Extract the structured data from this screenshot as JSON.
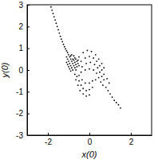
{
  "chart_data": {
    "type": "scatter",
    "x_label": "x(0)",
    "y_label": "y(0)",
    "color": "#000000",
    "marker": "dot",
    "xlim": [
      -3,
      3
    ],
    "ylim": [
      -3,
      3
    ],
    "xticks": [
      -2,
      0,
      2
    ],
    "yticks": [
      -3,
      -2,
      -1,
      0,
      1,
      2,
      3
    ],
    "x": [
      -1.85,
      -1.8,
      -1.75,
      -1.7,
      -1.65,
      -1.6,
      -1.55,
      -1.5,
      -1.45,
      -1.4,
      -1.35,
      -1.3,
      -1.25,
      -1.2,
      -1.15,
      -1.1,
      -1.05,
      -1.0,
      -0.95,
      -0.9,
      -0.85,
      -0.8,
      -0.75,
      -0.7,
      -0.65,
      -1.05,
      -1.0,
      -0.95,
      -0.9,
      -0.85,
      -0.8,
      -1.1,
      -1.05,
      -1.0,
      -0.95,
      -0.9,
      -0.6,
      -0.55,
      -0.5,
      -0.7,
      -0.65,
      -0.75,
      -0.85,
      -0.6,
      -0.7,
      -0.8,
      -0.9,
      -1.1,
      -0.55,
      -0.65,
      -0.75,
      -0.5,
      -0.3,
      -0.1,
      0.1,
      0.3,
      0.45,
      0.6,
      0.7,
      -0.4,
      -0.2,
      0,
      0.2,
      0.35,
      0.5,
      0.6,
      0.7,
      -0.35,
      -0.15,
      0.05,
      0.25,
      0.4,
      0.5,
      0.6,
      0.7,
      -0.4,
      -0.2,
      0,
      0.2,
      0.35,
      0.45,
      0.55,
      0.65,
      -0.6,
      -0.5,
      -0.4,
      -0.3,
      -0.15,
      0,
      0.15,
      -0.7,
      -0.65,
      -0.55,
      -0.45,
      -0.3,
      -0.15,
      0,
      -0.5,
      -0.35,
      -0.2,
      0,
      0.15,
      0.3,
      0.8,
      0.9,
      1.0,
      1.1,
      1.2,
      1.3,
      1.4,
      1.5,
      0.95,
      0.85
    ],
    "values": [
      2.9,
      2.75,
      2.6,
      2.45,
      2.3,
      2.15,
      2.0,
      1.85,
      1.7,
      1.55,
      1.42,
      1.3,
      1.18,
      1.07,
      0.97,
      0.88,
      0.8,
      0.7,
      0.6,
      0.5,
      0.4,
      0.3,
      0.2,
      0.1,
      0.0,
      0.5,
      0.4,
      0.3,
      0.2,
      0.1,
      0.0,
      0.35,
      0.25,
      0.15,
      0.05,
      -0.05,
      0.4,
      0.3,
      0.2,
      0.55,
      0.5,
      0.65,
      0.7,
      0.15,
      0.35,
      0.5,
      0.65,
      0.6,
      0.45,
      0.25,
      0.45,
      0.6,
      0.8,
      0.9,
      0.85,
      0.7,
      0.5,
      0.3,
      0.1,
      0.4,
      0.55,
      0.62,
      0.55,
      0.4,
      0.2,
      0.0,
      -0.2,
      0.15,
      0.3,
      0.35,
      0.25,
      0.1,
      -0.1,
      -0.3,
      -0.45,
      -0.1,
      0.0,
      0.05,
      0.0,
      -0.15,
      -0.35,
      -0.55,
      -0.7,
      -0.3,
      -0.5,
      -0.7,
      -0.85,
      -0.95,
      -0.9,
      -0.8,
      -0.2,
      -0.45,
      -0.7,
      -0.95,
      -1.1,
      -1.2,
      -1.15,
      -0.25,
      -0.45,
      -0.6,
      -0.6,
      -0.5,
      -0.45,
      -0.8,
      -0.95,
      -1.1,
      -1.25,
      -1.4,
      -1.5,
      -1.6,
      -1.75,
      -0.6,
      -0.4
    ]
  }
}
